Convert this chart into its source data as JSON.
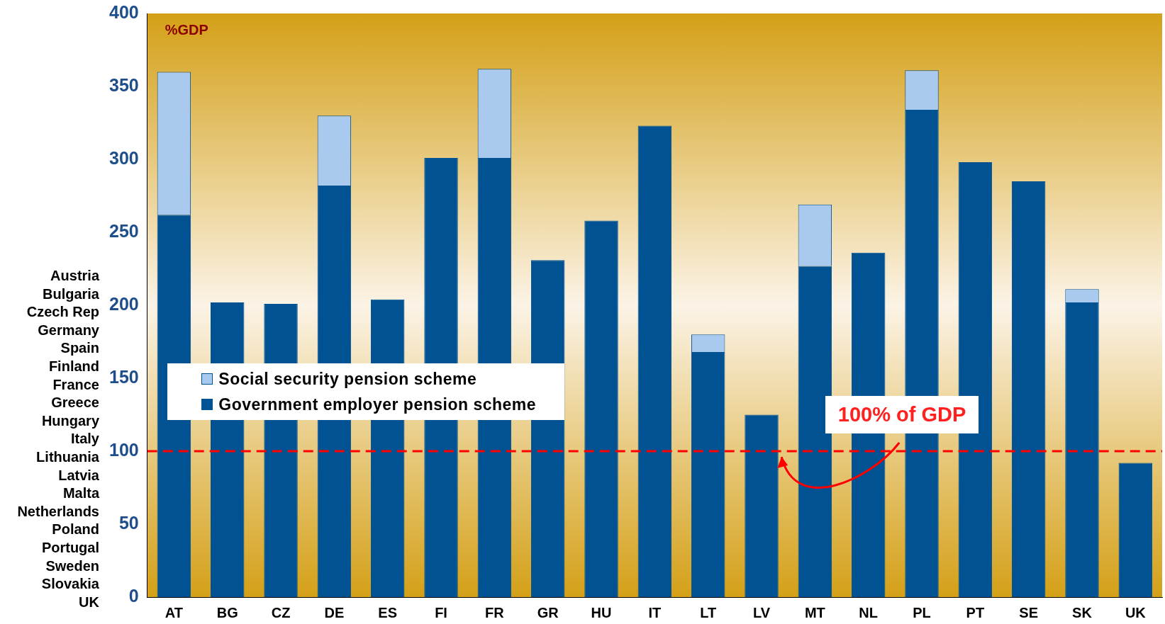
{
  "chart_data": {
    "type": "bar",
    "stacked": true,
    "categories": [
      "AT",
      "BG",
      "CZ",
      "DE",
      "ES",
      "FI",
      "FR",
      "GR",
      "HU",
      "IT",
      "LT",
      "LV",
      "MT",
      "NL",
      "PL",
      "PT",
      "SE",
      "SK",
      "UK"
    ],
    "series": [
      {
        "name": "Government employer pension scheme",
        "color": "#005293",
        "values": [
          262,
          202,
          201,
          282,
          204,
          301,
          301,
          231,
          258,
          323,
          168,
          125,
          227,
          236,
          334,
          298,
          285,
          202,
          92
        ]
      },
      {
        "name": "Social security pension scheme",
        "color": "#a9c9ef",
        "values": [
          98,
          0,
          0,
          48,
          0,
          0,
          61,
          0,
          0,
          0,
          12,
          0,
          42,
          0,
          27,
          0,
          0,
          9,
          0
        ]
      }
    ],
    "ylim": [
      0,
      400
    ],
    "yticks": [
      0,
      50,
      100,
      150,
      200,
      250,
      300,
      350,
      400
    ],
    "grid": false,
    "legend": "left",
    "ref_lines": [
      {
        "axis": "y",
        "value": 100,
        "label": "100% of GDP",
        "color": "#ff0000",
        "line_style": "dashed"
      }
    ],
    "annotations": [
      "%GDP",
      "Austria",
      "Bulgaria",
      "Czech Rep",
      "Germany",
      "Spain",
      "Finland",
      "France",
      "Greece",
      "Hungary",
      "Italy",
      "Lithuania",
      "Latvia",
      "Malta",
      "Netherlands",
      "Poland",
      "Portugal",
      "Sweden",
      "Slovakia",
      "UK"
    ]
  }
}
